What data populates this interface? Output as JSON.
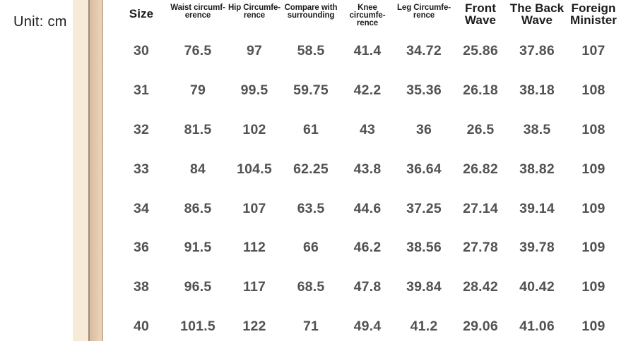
{
  "page": {
    "unit_label": "Unit: cm",
    "colors": {
      "stripe_cream": "#f7ead9",
      "stripe_divider": "#9c8b7b",
      "stripe_peach_dark": "#d9bb9e",
      "stripe_peach": "#eed5bd",
      "stripe_edge": "#c8b098",
      "header_text": "#1c1c1c",
      "cell_text": "#525252"
    }
  },
  "chart_data": {
    "type": "table",
    "unit": "cm",
    "columns": [
      {
        "label": "Size",
        "lines": [
          "Size"
        ],
        "emphasis": "big"
      },
      {
        "label": "Waist circumference",
        "lines": [
          "Waist circumf-",
          "erence"
        ],
        "emphasis": "small"
      },
      {
        "label": "Hip Circumference",
        "lines": [
          "Hip Circumfe-",
          "rence"
        ],
        "emphasis": "small"
      },
      {
        "label": "Compare with surrounding",
        "lines": [
          "Compare with",
          "surrounding"
        ],
        "emphasis": "small"
      },
      {
        "label": "Knee circumference",
        "lines": [
          "Knee circumfe-",
          "rence"
        ],
        "emphasis": "small"
      },
      {
        "label": "Leg Circumference",
        "lines": [
          "Leg Circumfe-",
          "rence"
        ],
        "emphasis": "small"
      },
      {
        "label": "Front Wave",
        "lines": [
          "Front",
          "Wave"
        ],
        "emphasis": "big"
      },
      {
        "label": "The Back Wave",
        "lines": [
          "The Back",
          "Wave"
        ],
        "emphasis": "big"
      },
      {
        "label": "Foreign Minister",
        "lines": [
          "Foreign",
          "Minister"
        ],
        "emphasis": "big"
      }
    ],
    "rows": [
      [
        "30",
        "76.5",
        "97",
        "58.5",
        "41.4",
        "34.72",
        "25.86",
        "37.86",
        "107"
      ],
      [
        "31",
        "79",
        "99.5",
        "59.75",
        "42.2",
        "35.36",
        "26.18",
        "38.18",
        "108"
      ],
      [
        "32",
        "81.5",
        "102",
        "61",
        "43",
        "36",
        "26.5",
        "38.5",
        "108"
      ],
      [
        "33",
        "84",
        "104.5",
        "62.25",
        "43.8",
        "36.64",
        "26.82",
        "38.82",
        "109"
      ],
      [
        "34",
        "86.5",
        "107",
        "63.5",
        "44.6",
        "37.25",
        "27.14",
        "39.14",
        "109"
      ],
      [
        "36",
        "91.5",
        "112",
        "66",
        "46.2",
        "38.56",
        "27.78",
        "39.78",
        "109"
      ],
      [
        "38",
        "96.5",
        "117",
        "68.5",
        "47.8",
        "39.84",
        "28.42",
        "40.42",
        "109"
      ],
      [
        "40",
        "101.5",
        "122",
        "71",
        "49.4",
        "41.2",
        "29.06",
        "41.06",
        "109"
      ]
    ]
  }
}
